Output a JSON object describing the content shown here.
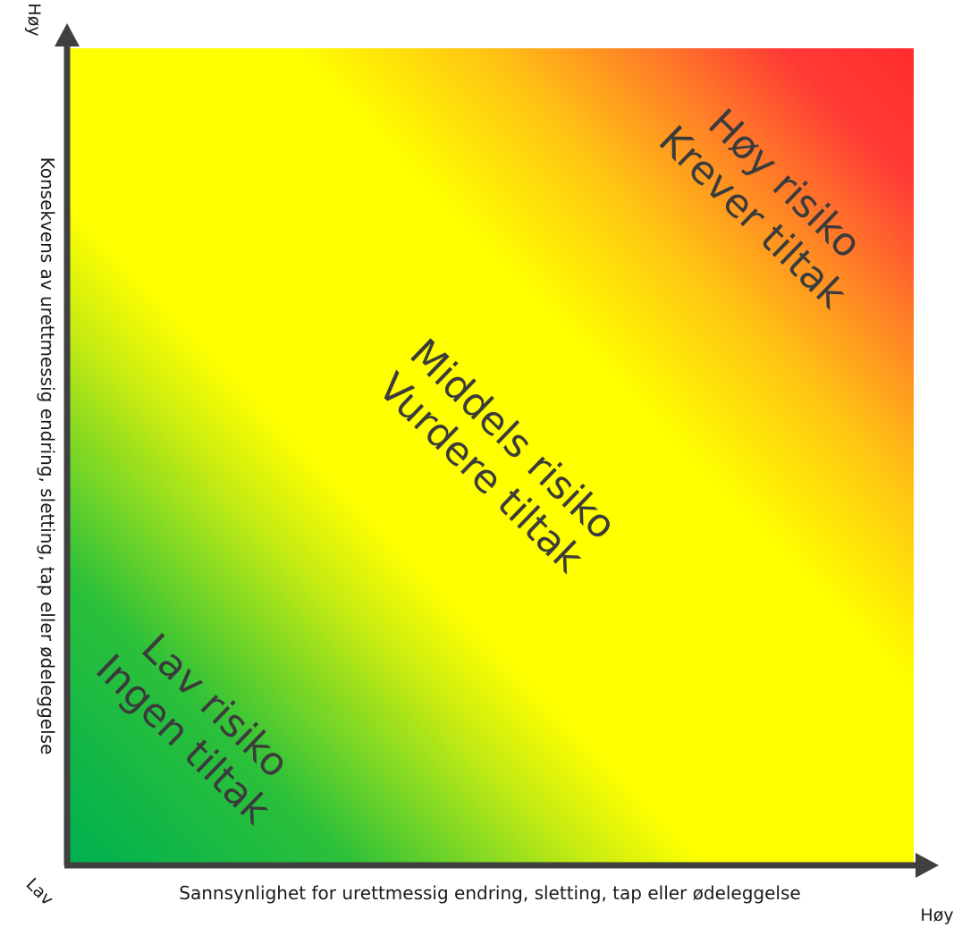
{
  "zones": {
    "high": {
      "line1": "Høy risiko",
      "line2": "Krever tiltak",
      "color": "#ff2d2d"
    },
    "medium": {
      "line1": "Middels risiko",
      "line2": "Vurdere tiltak",
      "color": "#ffff00"
    },
    "low": {
      "line1": "Lav risiko",
      "line2": "Ingen tiltak",
      "color": "#00b050"
    }
  },
  "axes": {
    "x_title": "Sannsynlighet for urettmessig endring, sletting, tap eller ødeleggelse",
    "y_title": "Konsekvens av urettmessig endring, sletting, tap eller ødeleggelse",
    "origin_label": "Lav",
    "x_high_label": "Høy",
    "y_high_label": "Høy",
    "color": "#404040"
  }
}
